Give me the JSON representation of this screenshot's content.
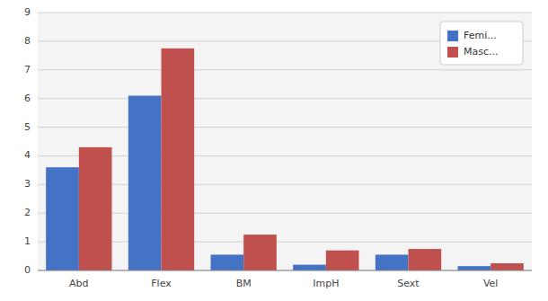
{
  "chart_data": {
    "type": "bar",
    "categories": [
      "Abd",
      "Flex",
      "BM",
      "ImpH",
      "Sext",
      "Vel"
    ],
    "series": [
      {
        "name": "Femi...",
        "color": "#4472C4",
        "values": [
          3.6,
          6.1,
          0.55,
          0.2,
          0.55,
          0.15
        ]
      },
      {
        "name": "Masc...",
        "color": "#C0504D",
        "values": [
          4.3,
          7.75,
          1.25,
          0.7,
          0.75,
          0.25
        ]
      }
    ],
    "ylim": [
      0,
      9
    ],
    "yticks": [
      0,
      1,
      2,
      3,
      4,
      5,
      6,
      7,
      8,
      9
    ],
    "grid": true,
    "legend": "upper right"
  }
}
